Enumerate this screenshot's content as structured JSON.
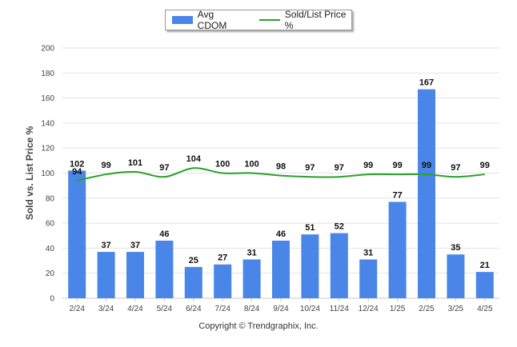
{
  "chart_data": {
    "type": "bar",
    "categories": [
      "2/24",
      "3/24",
      "4/24",
      "5/24",
      "6/24",
      "7/24",
      "8/24",
      "9/24",
      "10/24",
      "11/24",
      "12/24",
      "1/25",
      "2/25",
      "3/25",
      "4/25"
    ],
    "series": [
      {
        "name": "Avg CDOM",
        "type": "bar",
        "values": [
          102,
          37,
          37,
          46,
          25,
          27,
          31,
          46,
          51,
          52,
          31,
          77,
          167,
          35,
          21
        ],
        "color": "#4a86e8"
      },
      {
        "name": "Sold/List Price %",
        "type": "line",
        "values": [
          94,
          99,
          101,
          97,
          104,
          100,
          100,
          98,
          97,
          97,
          99,
          99,
          99,
          97,
          99
        ],
        "color": "#2ca02c"
      }
    ],
    "ylabel": "Sold vs. List Price %",
    "ylim": [
      0,
      200
    ],
    "yticks": [
      0,
      20,
      40,
      60,
      80,
      100,
      120,
      140,
      160,
      180,
      200
    ],
    "grid": true,
    "legend_position": "top-center"
  },
  "footer": {
    "copyright": "Copyright © Trendgraphix, Inc."
  }
}
